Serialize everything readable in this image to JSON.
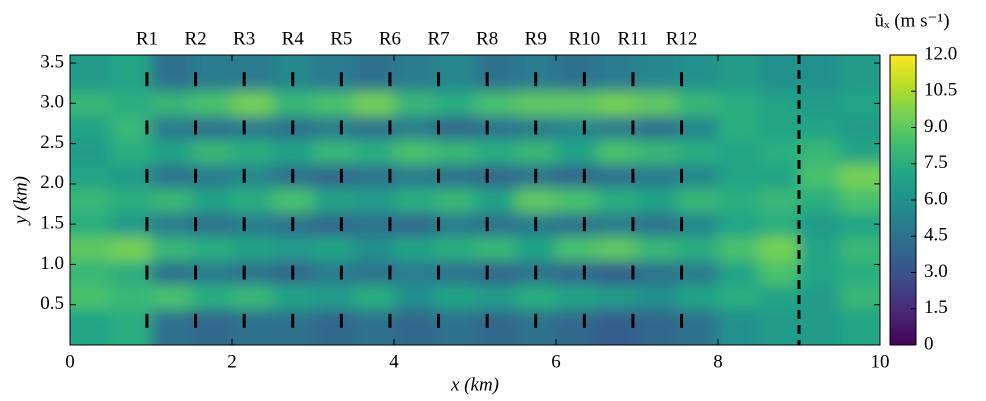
{
  "chart_data": {
    "type": "heatmap",
    "xlabel": "x (km)",
    "ylabel": "y (km)",
    "colorbar_label": "ũₓ (m s⁻¹)",
    "colormap": "viridis",
    "xlim": [
      0,
      10
    ],
    "xticks": [
      0,
      2,
      4,
      6,
      8,
      10
    ],
    "ylim": [
      0,
      3.6
    ],
    "yticks": [
      0.5,
      {
        "value": 1,
        "label": "1.0"
      },
      1.5,
      {
        "value": 2,
        "label": "2.0"
      },
      2.5,
      {
        "value": 3,
        "label": "3.0"
      },
      3.5
    ],
    "clim": [
      0,
      12
    ],
    "cticks": [
      0,
      1.5,
      {
        "value": 3,
        "label": "3.0"
      },
      4.5,
      {
        "value": 6,
        "label": "6.0"
      },
      7.5,
      {
        "value": 9,
        "label": "9.0"
      },
      10.5,
      {
        "value": 12,
        "label": "12.0"
      }
    ],
    "x": [
      0.25,
      0.75,
      1.25,
      1.75,
      2.25,
      2.75,
      3.25,
      3.75,
      4.25,
      4.75,
      5.25,
      5.75,
      6.25,
      6.75,
      7.25,
      7.75,
      8.25,
      8.75,
      9.25,
      9.75
    ],
    "y": [
      0.3,
      0.6,
      0.9,
      1.2,
      1.5,
      1.8,
      2.1,
      2.4,
      2.7,
      3.0,
      3.3
    ],
    "z": [
      [
        7,
        7.5,
        4.5,
        4,
        4.5,
        4.5,
        4,
        4.5,
        4,
        4.5,
        4,
        4.5,
        4,
        3.5,
        4,
        4.5,
        6,
        6.5,
        6.5,
        7
      ],
      [
        8.5,
        8,
        8.5,
        7.5,
        8,
        7,
        6.5,
        7.5,
        6,
        7,
        6.5,
        7.5,
        7,
        6.5,
        6,
        7,
        7.5,
        7,
        6.5,
        8
      ],
      [
        8,
        7.5,
        4.5,
        5,
        4.5,
        4,
        5,
        4.5,
        5,
        4.5,
        4,
        4.5,
        4,
        3.5,
        4.5,
        5,
        7,
        8.5,
        7,
        7.5
      ],
      [
        9,
        9.5,
        8,
        7.5,
        7,
        6.5,
        7,
        6,
        7,
        7.5,
        8,
        7,
        8.5,
        9,
        8,
        7.5,
        8.5,
        9.5,
        7,
        8
      ],
      [
        7.5,
        6.5,
        5,
        4.5,
        5,
        4.5,
        4,
        4.5,
        4,
        5,
        4.5,
        5,
        4.5,
        5,
        4.5,
        5.5,
        7,
        7.5,
        6.5,
        7
      ],
      [
        8,
        7.5,
        8,
        7,
        7.5,
        8.5,
        7,
        6.5,
        7.5,
        8,
        7,
        9,
        8.5,
        7.5,
        7,
        8,
        7.5,
        8,
        7.5,
        8.5
      ],
      [
        7,
        6.5,
        4.5,
        5,
        5.5,
        4.5,
        4,
        4.5,
        5,
        4.5,
        4,
        4.5,
        4,
        4.5,
        5,
        5.5,
        7,
        7,
        8.5,
        9.5
      ],
      [
        6.5,
        7.5,
        7,
        8,
        7.5,
        7,
        8,
        7.5,
        8.5,
        8,
        7.5,
        8,
        7,
        8.5,
        8,
        7.5,
        7,
        7.5,
        8,
        7
      ],
      [
        7,
        8,
        5,
        4.5,
        5,
        4.5,
        5,
        4.5,
        5,
        4,
        4.5,
        5,
        5.5,
        5,
        4.5,
        5.5,
        7.5,
        7,
        7,
        6.5
      ],
      [
        8,
        7.5,
        8,
        8.5,
        9.5,
        8,
        8.5,
        9.5,
        8,
        7.5,
        8.5,
        9,
        9,
        9.5,
        9,
        8,
        7.5,
        7,
        6.5,
        7
      ],
      [
        6.5,
        7,
        4.5,
        5,
        5,
        5.5,
        5,
        4.5,
        5,
        5.5,
        4.5,
        5,
        4.5,
        5,
        5.5,
        6,
        6.5,
        6,
        6,
        6.5
      ]
    ],
    "turbine_labels": [
      "R1",
      "R2",
      "R3",
      "R4",
      "R5",
      "R6",
      "R7",
      "R8",
      "R9",
      "R10",
      "R11",
      "R12"
    ],
    "turbine_x": [
      0.95,
      1.55,
      2.15,
      2.75,
      3.35,
      3.95,
      4.55,
      5.15,
      5.75,
      6.35,
      6.95,
      7.55
    ],
    "turbine_y": [
      0.3,
      0.9,
      1.5,
      2.1,
      2.7,
      3.3
    ],
    "reference_x": 9.0
  }
}
